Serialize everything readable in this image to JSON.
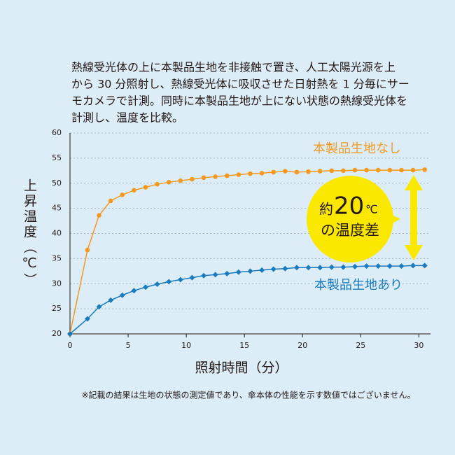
{
  "chart_data": {
    "type": "line",
    "description": [
      "熱線受光体の上に本製品生地を非接触で置き、人工太陽光源を上",
      "から 30 分照射し、熱線受光体に吸収させた日射熱を 1 分毎にサー",
      "モカメラで計測。同時に本製品生地が上にない状態の熱線受光体を",
      "計測し、温度を比較。"
    ],
    "y_label": "上昇温度（℃）",
    "x_label": "照射時間（分）",
    "annotation": {
      "prefix": "約",
      "number": "20",
      "unit": "℃",
      "line2": "の温度差"
    },
    "footnote": "※記載の結果は生地の状態の測定値であり、傘本体の性能を示す数値ではございません。",
    "x": [
      0,
      1.5,
      2.5,
      3.5,
      4.5,
      5.5,
      6.5,
      7.5,
      8.5,
      9.5,
      10.5,
      11.5,
      12.5,
      13.5,
      14.5,
      15.5,
      16.5,
      17.5,
      18.5,
      19.5,
      20.5,
      21.5,
      22.5,
      23.5,
      24.5,
      25.5,
      26.5,
      27.5,
      28.5,
      29.5,
      30.5
    ],
    "series": [
      {
        "name": "本製品生地なし",
        "color": "#f39a1e",
        "marker": "circle",
        "values": [
          20,
          36.7,
          43.6,
          46.5,
          47.7,
          48.6,
          49.2,
          49.8,
          50.2,
          50.5,
          50.8,
          51.1,
          51.3,
          51.5,
          51.7,
          51.9,
          52.0,
          52.2,
          52.4,
          52.2,
          52.3,
          52.4,
          52.5,
          52.5,
          52.6,
          52.6,
          52.6,
          52.6,
          52.6,
          52.6,
          52.7
        ]
      },
      {
        "name": "本製品生地あり",
        "color": "#1a7bbf",
        "marker": "diamond",
        "values": [
          20,
          23.0,
          25.4,
          26.7,
          27.7,
          28.6,
          29.3,
          29.9,
          30.4,
          30.8,
          31.2,
          31.6,
          31.8,
          32.0,
          32.3,
          32.5,
          32.7,
          32.9,
          33.0,
          33.2,
          33.2,
          33.2,
          33.3,
          33.3,
          33.4,
          33.5,
          33.5,
          33.5,
          33.5,
          33.6,
          33.6
        ]
      }
    ],
    "xlim": [
      0,
      31
    ],
    "ylim": [
      20,
      60
    ],
    "xticks": [
      0,
      5,
      10,
      15,
      20,
      25,
      30
    ],
    "yticks": [
      20,
      25,
      30,
      35,
      40,
      45,
      50,
      55,
      60
    ],
    "grid": true
  }
}
